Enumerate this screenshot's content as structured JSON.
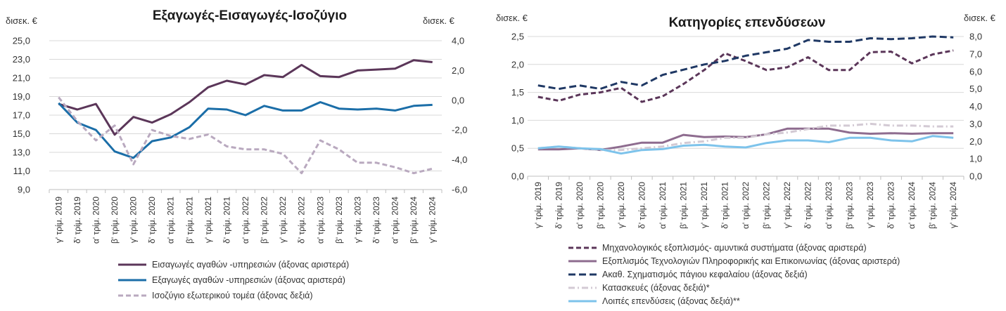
{
  "categories": [
    "γ' τρίμ. 2019",
    "δ' τρίμ. 2019",
    "α' τρίμ. 2020",
    "β' τρίμ. 2020",
    "γ' τρίμ. 2020",
    "δ' τρίμ. 2020",
    "α' τρίμ. 2021",
    "β' τρίμ. 2021",
    "γ' τρίμ. 2021",
    "δ' τρίμ. 2021",
    "α' τρίμ. 2022",
    "β' τρίμ. 2022",
    "γ' τρίμ. 2022",
    "δ' τρίμ. 2022",
    "α' τρίμ. 2023",
    "β' τρίμ. 2023",
    "γ' τρίμ. 2023",
    "δ' τρίμ. 2023",
    "α' τρίμ. 2024",
    "β' τρίμ. 2024",
    "γ' τρίμ. 2024"
  ],
  "chart_data": [
    {
      "type": "line",
      "title": "Εξαγωγές-Εισαγωγές-Ισοζύγιο",
      "ylabel_left": "δισεκ. €",
      "ylabel_right": "δισεκ. €",
      "y_left": {
        "min": 9,
        "max": 25,
        "ticks": [
          "9,0",
          "11,0",
          "13,0",
          "15,0",
          "17,0",
          "19,0",
          "21,0",
          "23,0",
          "25,0"
        ]
      },
      "y_right": {
        "min": -6,
        "max": 4,
        "ticks": [
          "-6,0",
          "-4,0",
          "-2,0",
          "0,0",
          "2,0",
          "4,0"
        ]
      },
      "grid": true,
      "legend_position": "bottom",
      "series": [
        {
          "name": "Εισαγωγές αγαθών -υπηρεσιών (άξονας αριστερά)",
          "axis": "left",
          "color": "#5b3659",
          "dash": "solid",
          "values": [
            18.2,
            17.6,
            18.2,
            14.9,
            16.8,
            16.2,
            17.1,
            18.4,
            20.0,
            20.7,
            20.3,
            21.3,
            21.1,
            22.4,
            21.2,
            21.1,
            21.8,
            21.9,
            22.0,
            22.9,
            22.7
          ]
        },
        {
          "name": "Εξαγωγές αγαθών -υπηρεσιών (άξονας αριστερά)",
          "axis": "left",
          "color": "#1b6ea8",
          "dash": "solid",
          "values": [
            18.3,
            16.2,
            15.4,
            13.1,
            12.4,
            14.2,
            14.6,
            15.7,
            17.7,
            17.6,
            17.0,
            18.0,
            17.5,
            17.5,
            18.4,
            17.7,
            17.6,
            17.7,
            17.5,
            18.0,
            18.1
          ]
        },
        {
          "name": "Ισοζύγιο εξωτερικού τομέα (άξονας δεξιά)",
          "axis": "right",
          "color": "#b9a9bf",
          "dash": "dashed",
          "values": [
            0.2,
            -1.4,
            -2.7,
            -1.7,
            -4.3,
            -2.0,
            -2.4,
            -2.6,
            -2.3,
            -3.1,
            -3.3,
            -3.3,
            -3.6,
            -4.9,
            -2.7,
            -3.3,
            -4.2,
            -4.2,
            -4.5,
            -4.9,
            -4.6
          ]
        }
      ]
    },
    {
      "type": "line",
      "title": "Κατηγορίες επενδύσεων",
      "ylabel_left": "δισεκ. €",
      "ylabel_right": "δισεκ. €",
      "y_left": {
        "min": 0,
        "max": 2.5,
        "ticks": [
          "0,0",
          "0,5",
          "1,0",
          "1,5",
          "2,0",
          "2,5"
        ]
      },
      "y_right": {
        "min": 0,
        "max": 8,
        "ticks": [
          "0,0",
          "1,0",
          "2,0",
          "3,0",
          "4,0",
          "5,0",
          "6,0",
          "7,0",
          "8,0"
        ]
      },
      "grid": true,
      "legend_position": "bottom",
      "series": [
        {
          "name": "Μηχανολογικός εξοπλισμός- αμυντικά συστήματα (άξονας αριστερά)",
          "axis": "left",
          "color": "#5b3659",
          "dash": "dashed",
          "values": [
            1.42,
            1.35,
            1.46,
            1.5,
            1.58,
            1.33,
            1.43,
            1.65,
            1.9,
            2.2,
            2.06,
            1.9,
            1.95,
            2.13,
            1.9,
            1.9,
            2.22,
            2.23,
            2.02,
            2.18,
            2.25
          ]
        },
        {
          "name": "Εξοπλισμός Τεχνολογιών Πληροφορικής και Επικοινωνίας (άξονας αριστερά)",
          "axis": "left",
          "color": "#8e6c8f",
          "dash": "solid",
          "values": [
            0.48,
            0.48,
            0.5,
            0.47,
            0.53,
            0.6,
            0.6,
            0.74,
            0.7,
            0.71,
            0.7,
            0.75,
            0.85,
            0.85,
            0.85,
            0.78,
            0.76,
            0.77,
            0.76,
            0.77,
            0.77
          ]
        },
        {
          "name": "Ακαθ. Σχηματισμός πάγιου κεφαλαίου (άξονας δεξιά)",
          "axis": "right",
          "color": "#1f3864",
          "dash": "longdash",
          "values": [
            5.2,
            5.0,
            5.2,
            5.0,
            5.4,
            5.2,
            5.8,
            6.1,
            6.4,
            6.6,
            6.9,
            7.1,
            7.3,
            7.8,
            7.7,
            7.7,
            7.9,
            7.85,
            7.9,
            8.0,
            7.95
          ]
        },
        {
          "name": "Κατασκευές (άξονας δεξιά)*",
          "axis": "right",
          "color": "#d3cad4",
          "dash": "dashdot",
          "values": [
            1.6,
            1.7,
            1.6,
            1.5,
            1.5,
            1.6,
            1.7,
            1.9,
            2.0,
            2.2,
            2.2,
            2.4,
            2.5,
            2.7,
            2.9,
            2.9,
            3.0,
            2.9,
            2.9,
            2.85,
            2.85
          ]
        },
        {
          "name": "Λοιπές επενδύσεις (άξονας δεξιά)**",
          "axis": "right",
          "color": "#7dc3eb",
          "dash": "solid",
          "values": [
            1.6,
            1.7,
            1.6,
            1.55,
            1.3,
            1.5,
            1.55,
            1.75,
            1.8,
            1.7,
            1.65,
            1.9,
            2.05,
            2.05,
            1.95,
            2.2,
            2.2,
            2.05,
            2.0,
            2.3,
            2.2
          ]
        }
      ]
    }
  ]
}
